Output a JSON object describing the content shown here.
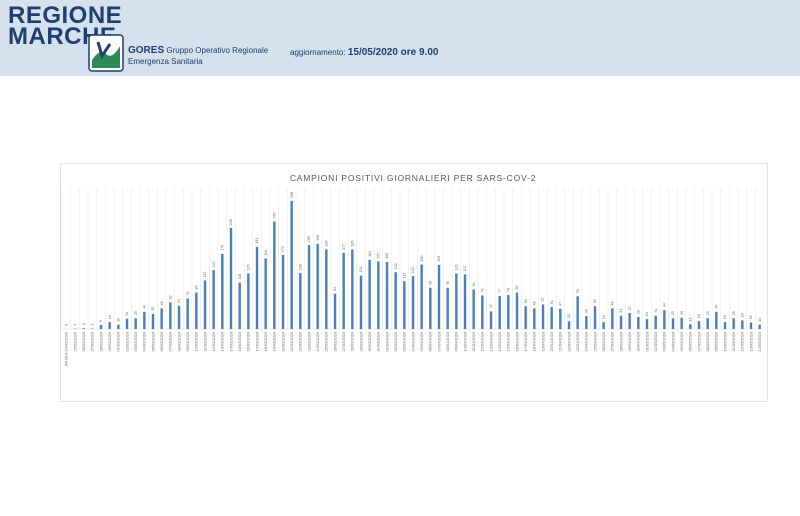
{
  "header": {
    "logo_line1": "REGIONE",
    "logo_line2": "MARCHE",
    "org_name": "GORES",
    "org_desc_line1": "Gruppo Operativo Regionale",
    "org_desc_line2": "Emergenza Sanitaria",
    "update_label": "aggiornamento:",
    "update_value": "15/05/2020 ore 9.00"
  },
  "colors": {
    "bar": "#4a7fbd",
    "header_bg": "#d6e1ee",
    "brand": "#1f3f6e",
    "emblem": "#2e8b57"
  },
  "chart_data": {
    "type": "bar",
    "title": "CAMPIONI POSITIVI GIORNALIERI PER SARS-COV-2",
    "categories": [
      "DA 06 A 24/02/2020",
      "25/02/2020",
      "26/02/2020",
      "27/02/2020",
      "28/02/2020",
      "29/02/2020",
      "01/03/2020",
      "02/03/2020",
      "03/03/2020",
      "04/03/2020",
      "05/03/2020",
      "06/03/2020",
      "07/03/2020",
      "08/03/2020",
      "09/03/2020",
      "10/03/2020",
      "11/03/2020",
      "12/03/2020",
      "13/03/2020",
      "14/03/2020",
      "15/03/2020",
      "16/03/2020",
      "17/03/2020",
      "18/03/2020",
      "19/03/2020",
      "20/03/2020",
      "21/03/2020",
      "22/03/2020",
      "23/03/2020",
      "24/03/2020",
      "25/03/2020",
      "26/03/2020",
      "27/03/2020",
      "28/03/2020",
      "29/03/2020",
      "30/03/2020",
      "31/03/2020",
      "01/04/2020",
      "02/04/2020",
      "03/04/2020",
      "04/04/2020",
      "05/04/2020",
      "06/04/2020",
      "07/04/2020",
      "08/04/2020",
      "09/04/2020",
      "10/04/2020",
      "11/04/2020",
      "12/04/2020",
      "13/04/2020",
      "14/04/2020",
      "15/04/2020",
      "16/04/2020",
      "17/04/2020",
      "18/04/2020",
      "19/04/2020",
      "20/04/2020",
      "21/04/2020",
      "22/04/2020",
      "23/04/2020",
      "24/04/2020",
      "25/04/2020",
      "26/04/2020",
      "27/04/2020",
      "28/04/2020",
      "29/04/2020",
      "30/04/2020",
      "01/05/2020",
      "02/05/2020",
      "03/05/2020",
      "04/05/2020",
      "05/05/2020",
      "06/05/2020",
      "07/05/2020",
      "08/05/2020",
      "09/05/2020",
      "10/05/2020",
      "11/05/2020",
      "12/05/2020",
      "13/05/2020",
      "14/05/2020"
    ],
    "values": [
      0,
      1,
      2,
      1,
      9,
      16,
      10,
      24,
      25,
      40,
      35,
      48,
      62,
      54,
      71,
      85,
      113,
      137,
      175,
      235,
      108,
      129,
      191,
      164,
      250,
      172,
      298,
      130,
      195,
      198,
      185,
      82,
      177,
      185,
      124,
      161,
      157,
      156,
      132,
      111,
      123,
      150,
      96,
      149,
      96,
      129,
      127,
      92,
      78,
      41,
      77,
      79,
      85,
      53,
      48,
      57,
      51,
      47,
      18,
      76,
      30,
      53,
      16,
      48,
      31,
      37,
      28,
      23,
      31,
      44,
      25,
      26,
      11,
      18,
      25,
      40,
      16,
      25,
      20,
      15,
      10
    ],
    "ylim": [
      0,
      320
    ],
    "grid": "vertical",
    "legend": "none"
  }
}
